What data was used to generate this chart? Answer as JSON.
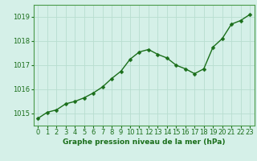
{
  "x": [
    0,
    1,
    2,
    3,
    4,
    5,
    6,
    7,
    8,
    9,
    10,
    11,
    12,
    13,
    14,
    15,
    16,
    17,
    18,
    19,
    20,
    21,
    22,
    23
  ],
  "y": [
    1014.8,
    1015.05,
    1015.15,
    1015.4,
    1015.5,
    1015.65,
    1015.85,
    1016.1,
    1016.45,
    1016.75,
    1017.25,
    1017.55,
    1017.65,
    1017.45,
    1017.3,
    1017.0,
    1016.85,
    1016.65,
    1016.85,
    1017.75,
    1018.1,
    1018.7,
    1018.85,
    1019.1
  ],
  "line_color": "#1a6e1a",
  "marker_color": "#1a6e1a",
  "bg_color": "#d5f0e8",
  "grid_color": "#b8ddd0",
  "border_color": "#4a9a4a",
  "xlabel": "Graphe pression niveau de la mer (hPa)",
  "xlabel_color": "#1a6e1a",
  "tick_color": "#1a6e1a",
  "ylim_min": 1014.5,
  "ylim_max": 1019.5,
  "yticks": [
    1015,
    1016,
    1017,
    1018,
    1019
  ],
  "xticks": [
    0,
    1,
    2,
    3,
    4,
    5,
    6,
    7,
    8,
    9,
    10,
    11,
    12,
    13,
    14,
    15,
    16,
    17,
    18,
    19,
    20,
    21,
    22,
    23
  ],
  "marker_size": 2.5,
  "line_width": 1.0,
  "font_size": 6,
  "xlabel_font_size": 6.5
}
